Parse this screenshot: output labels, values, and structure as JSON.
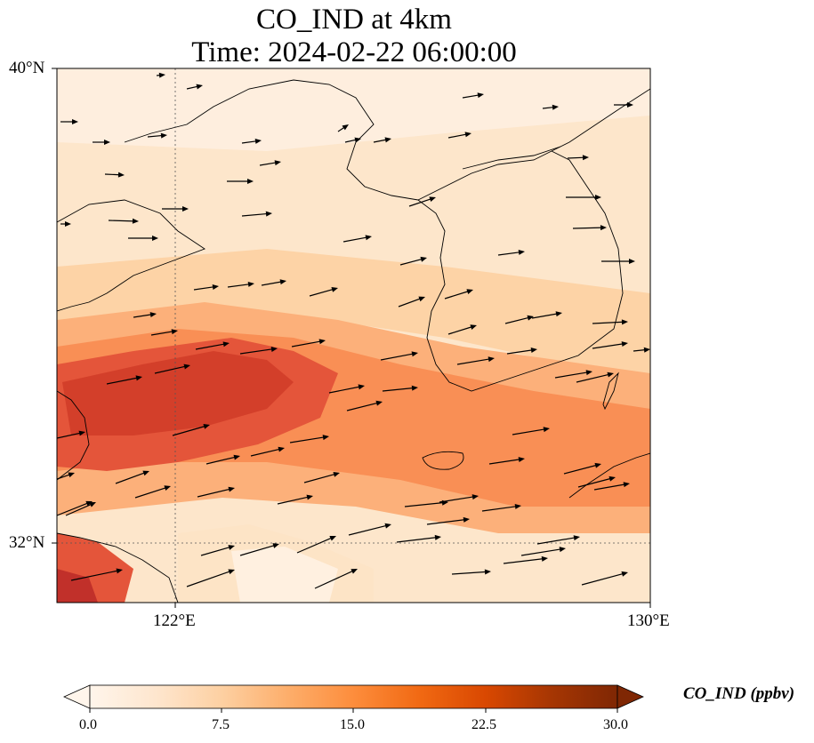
{
  "title": {
    "line1": "CO_IND at 4km",
    "line2": "Time: 2024-02-22 06:00:00"
  },
  "map": {
    "lat_labels": [
      "40°N",
      "32°N"
    ],
    "lon_labels": [
      "122°E",
      "130°E"
    ],
    "lat_range": [
      31,
      40
    ],
    "lon_range": [
      120,
      130
    ],
    "gridlines": "dotted"
  },
  "colorbar": {
    "label": "CO_IND (ppbv)",
    "tick_labels": [
      "0.0",
      "7.5",
      "15.0",
      "22.5",
      "30.0"
    ],
    "range": [
      0,
      30
    ],
    "extend": "both",
    "colormap": [
      "#fff5eb",
      "#fee6ce",
      "#fdd0a2",
      "#fdae6b",
      "#fd8d3c",
      "#f16913",
      "#d94801",
      "#a63603",
      "#7f2704"
    ]
  },
  "colors": {
    "coastline": "#000000",
    "vector": "#000000"
  }
}
